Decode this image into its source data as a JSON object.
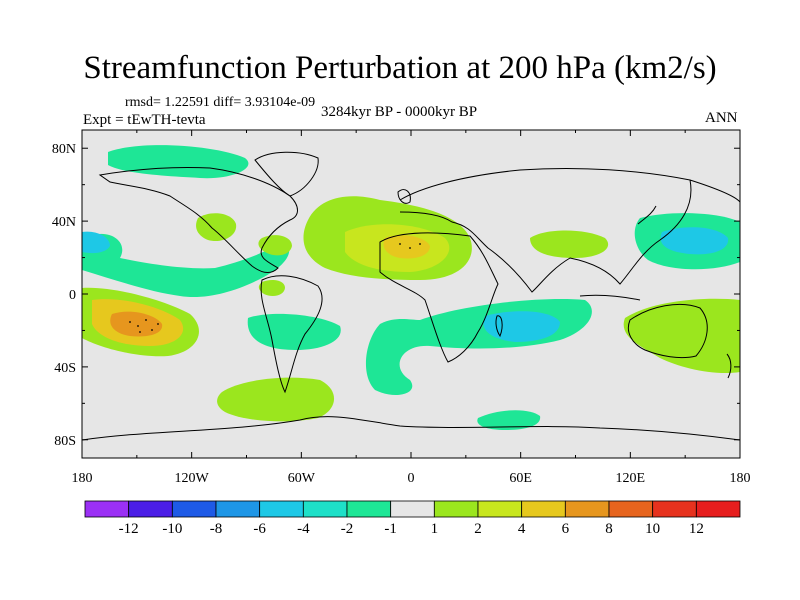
{
  "title": "Streamfunction Perturbation at 200 hPa (km2/s)",
  "rmsd_line": "rmsd= 1.22591 diff= 3.93104e-09",
  "expt_line": "Expt = tEwTH-tevta",
  "period": "3284kyr BP - 0000kyr BP",
  "season": "ANN",
  "lat_ticks": [
    {
      "label": "80N",
      "lat": 80
    },
    {
      "label": "40N",
      "lat": 40
    },
    {
      "label": "0",
      "lat": 0
    },
    {
      "label": "40S",
      "lat": -40
    },
    {
      "label": "80S",
      "lat": -80
    }
  ],
  "lon_ticks": [
    {
      "label": "180",
      "lon": -180
    },
    {
      "label": "120W",
      "lon": -120
    },
    {
      "label": "60W",
      "lon": -60
    },
    {
      "label": "0",
      "lon": 0
    },
    {
      "label": "60E",
      "lon": 60
    },
    {
      "label": "120E",
      "lon": 120
    },
    {
      "label": "180",
      "lon": 180
    }
  ],
  "colorbar": {
    "colors": [
      "#9b30f5",
      "#4b1ee6",
      "#1e5ae6",
      "#1e96e6",
      "#1ec8e6",
      "#1ee0c8",
      "#1ee696",
      "#e6e6e6",
      "#9be61e",
      "#c8e61e",
      "#e6c81e",
      "#e6961e",
      "#e6641e",
      "#e6321e",
      "#e61e1e"
    ],
    "labels": [
      "-12",
      "-10",
      "-8",
      "-6",
      "-4",
      "-2",
      "-1",
      "1",
      "2",
      "4",
      "6",
      "8",
      "10",
      "12"
    ]
  },
  "map_colors": {
    "background": "#e6e6e6",
    "coast": "#000000"
  }
}
